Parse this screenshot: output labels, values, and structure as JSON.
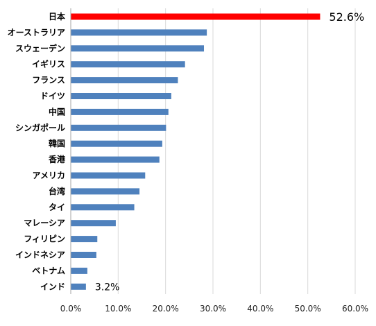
{
  "chart_data": {
    "type": "bar",
    "orientation": "horizontal",
    "categories": [
      "日本",
      "オーストラリア",
      "スウェーデン",
      "イギリス",
      "フランス",
      "ドイツ",
      "中国",
      "シンガポール",
      "韓国",
      "香港",
      "アメリカ",
      "台湾",
      "タイ",
      "マレーシア",
      "フィリピン",
      "インドネシア",
      "ベトナム",
      "インド"
    ],
    "values": [
      52.6,
      28.7,
      28.1,
      24.1,
      22.6,
      21.2,
      20.6,
      20.1,
      19.3,
      18.7,
      15.7,
      14.5,
      13.4,
      9.5,
      5.6,
      5.4,
      3.5,
      3.2
    ],
    "xlim": [
      0,
      60
    ],
    "xticks": [
      "0.0%",
      "10.0%",
      "20.0%",
      "30.0%",
      "40.0%",
      "50.0%",
      "60.0%"
    ],
    "grid": true,
    "data_labels": [
      {
        "category": "日本",
        "text": "52.6%"
      },
      {
        "category": "インド",
        "text": "3.2%"
      }
    ],
    "colors": {
      "highlight": "#ff0000",
      "bar": "#4f81bd",
      "grid": "#d9d9d9",
      "axis": "#a6a6a6"
    },
    "highlight_category": "日本",
    "title": "",
    "xlabel": "",
    "ylabel": ""
  }
}
